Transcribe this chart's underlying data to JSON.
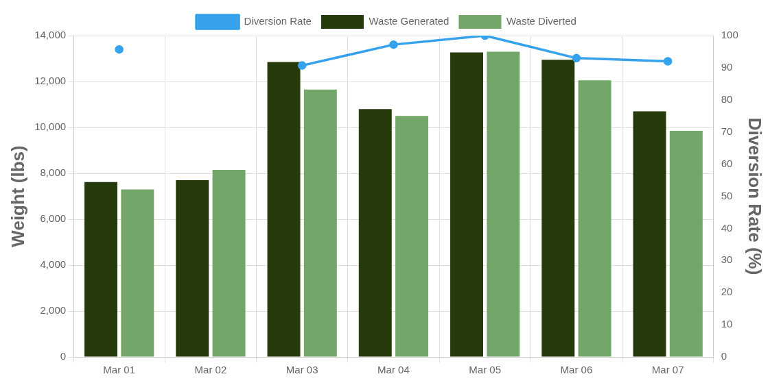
{
  "chart_data": {
    "type": "bar",
    "categories": [
      "Mar 01",
      "Mar 02",
      "Mar 03",
      "Mar 04",
      "Mar 05",
      "Mar 06",
      "Mar 07"
    ],
    "series": [
      {
        "name": "Diversion Rate",
        "type": "line",
        "axis": "y2",
        "color": "#36a2eb",
        "values": [
          95.7,
          null,
          90.7,
          97.2,
          100,
          93,
          92
        ]
      },
      {
        "name": "Waste Generated",
        "color": "#263b0c",
        "values": [
          7620,
          7700,
          12850,
          10800,
          13270,
          12950,
          10700
        ]
      },
      {
        "name": "Waste Diverted",
        "color": "#73a769",
        "values": [
          7300,
          8150,
          11650,
          10500,
          13300,
          12050,
          9850
        ]
      }
    ],
    "ylabel": "Weight (lbs)",
    "y2label": "Diversion Rate (%)",
    "ylim": [
      0,
      14000
    ],
    "yticks": [
      0,
      {
        "value": 2000,
        "label": "2,000"
      },
      {
        "value": 4000,
        "label": "4,000"
      },
      {
        "value": 6000,
        "label": "6,000"
      },
      {
        "value": 8000,
        "label": "8,000"
      },
      {
        "value": 10000,
        "label": "10,000"
      },
      {
        "value": 12000,
        "label": "12,000"
      },
      {
        "value": 14000,
        "label": "14,000"
      }
    ],
    "y2lim": [
      0,
      100
    ],
    "y2ticks": [
      0,
      10,
      20,
      30,
      40,
      50,
      60,
      70,
      80,
      90,
      100
    ],
    "grid": true,
    "legend": "top",
    "marker": "circle"
  }
}
